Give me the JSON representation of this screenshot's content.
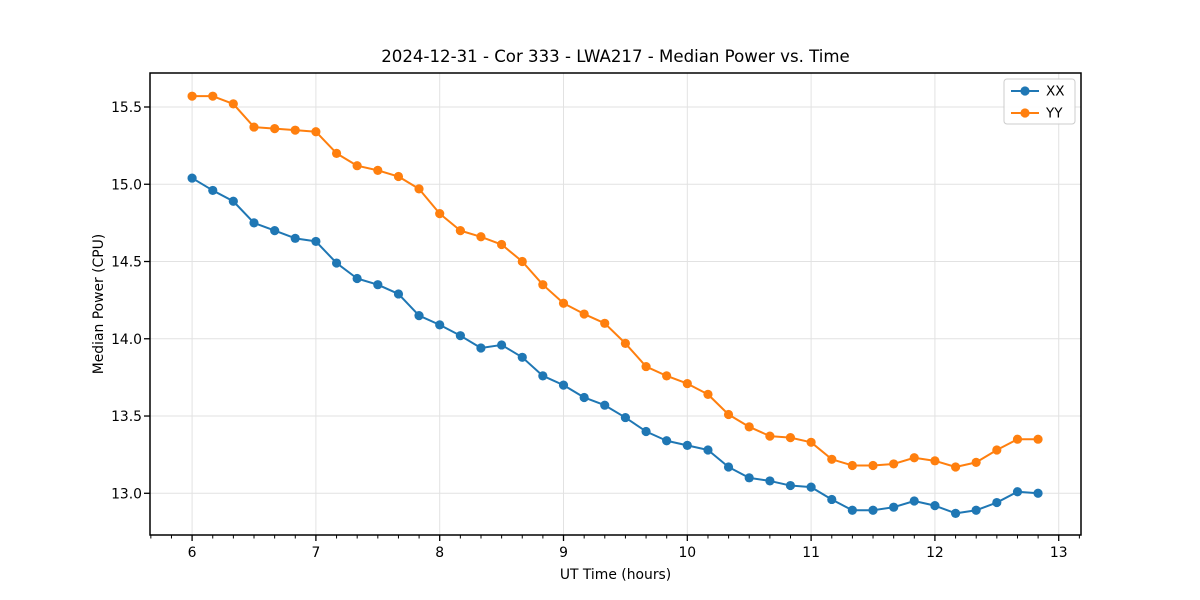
{
  "chart_data": {
    "type": "line",
    "title": "2024-12-31 - Cor 333 - LWA217 - Median Power vs. Time",
    "xlabel": "UT Time (hours)",
    "ylabel": "Median Power (CPU)",
    "xlim": [
      5.66,
      13.18
    ],
    "ylim": [
      12.73,
      15.72
    ],
    "x_ticks": [
      6,
      7,
      8,
      9,
      10,
      11,
      12,
      13
    ],
    "x_tick_labels": [
      "6",
      "7",
      "8",
      "9",
      "10",
      "11",
      "12",
      "13"
    ],
    "y_ticks": [
      13.0,
      13.5,
      14.0,
      14.5,
      15.0,
      15.5
    ],
    "y_tick_labels": [
      "13.0",
      "13.5",
      "14.0",
      "14.5",
      "15.0",
      "15.5"
    ],
    "x_minor_step": 0.16667,
    "grid": true,
    "grid_color": "#e2e2e2",
    "legend_position": "upper right",
    "marker": "circle",
    "x": [
      6.0,
      6.167,
      6.333,
      6.5,
      6.667,
      6.833,
      7.0,
      7.167,
      7.333,
      7.5,
      7.667,
      7.833,
      8.0,
      8.167,
      8.333,
      8.5,
      8.667,
      8.833,
      9.0,
      9.167,
      9.333,
      9.5,
      9.667,
      9.833,
      10.0,
      10.167,
      10.333,
      10.5,
      10.667,
      10.833,
      11.0,
      11.167,
      11.333,
      11.5,
      11.667,
      11.833,
      12.0,
      12.167,
      12.333,
      12.5,
      12.667,
      12.833
    ],
    "series": [
      {
        "name": "XX",
        "color": "#1f77b4",
        "values": [
          15.04,
          14.96,
          14.89,
          14.75,
          14.7,
          14.65,
          14.63,
          14.49,
          14.39,
          14.35,
          14.29,
          14.15,
          14.09,
          14.02,
          13.94,
          13.96,
          13.88,
          13.76,
          13.7,
          13.62,
          13.57,
          13.49,
          13.4,
          13.34,
          13.31,
          13.28,
          13.17,
          13.1,
          13.08,
          13.05,
          13.04,
          12.96,
          12.89,
          12.89,
          12.91,
          12.95,
          12.92,
          12.87,
          12.89,
          12.94,
          13.01,
          13.0
        ]
      },
      {
        "name": "YY",
        "color": "#ff7f0e",
        "values": [
          15.57,
          15.57,
          15.52,
          15.37,
          15.36,
          15.35,
          15.34,
          15.2,
          15.12,
          15.09,
          15.05,
          14.97,
          14.81,
          14.7,
          14.66,
          14.61,
          14.5,
          14.35,
          14.23,
          14.16,
          14.1,
          13.97,
          13.82,
          13.76,
          13.71,
          13.64,
          13.51,
          13.43,
          13.37,
          13.36,
          13.33,
          13.22,
          13.18,
          13.18,
          13.19,
          13.23,
          13.21,
          13.17,
          13.2,
          13.28,
          13.35,
          13.35
        ]
      }
    ]
  },
  "style": {
    "spine_color": "#000000",
    "background": "#ffffff",
    "text_color": "#000000",
    "legend_border": "#cccccc"
  }
}
